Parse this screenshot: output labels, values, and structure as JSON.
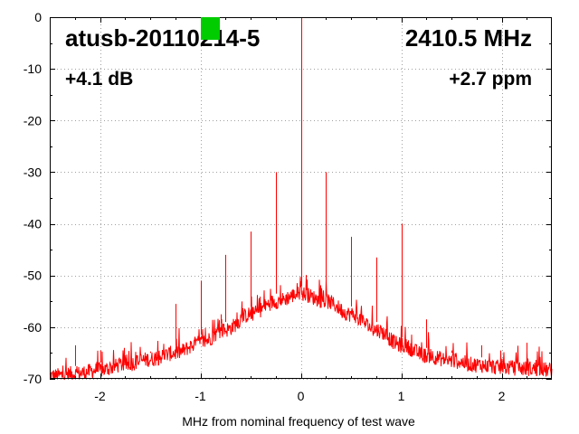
{
  "chart_data": {
    "type": "line",
    "title": "atusb-20110214-5",
    "frequency_label": "2410.5 MHz",
    "gain_label": "+4.1 dB",
    "ppm_label": "+2.7 ppm",
    "xlabel": "MHz from nominal frequency of test wave",
    "ylabel": "",
    "xlim": [
      -2.5,
      2.5
    ],
    "ylim": [
      -70,
      0
    ],
    "x_ticks": [
      -2,
      -1,
      0,
      1,
      2
    ],
    "y_ticks": [
      0,
      -10,
      -20,
      -30,
      -40,
      -50,
      -60,
      -70
    ],
    "grid": true,
    "legend": "none",
    "colors": {
      "trace": "#ff0000",
      "marker": "#00cc00",
      "grid": "#a0a0a0"
    },
    "series": [
      {
        "noise_floor_envelope": {
          "x": [
            -2.5,
            -2.25,
            -2.0,
            -1.75,
            -1.5,
            -1.25,
            -1.0,
            -0.75,
            -0.5,
            -0.25,
            0.0,
            0.25,
            0.5,
            0.75,
            1.0,
            1.25,
            1.5,
            1.75,
            2.0,
            2.25,
            2.5
          ],
          "y": [
            -69.5,
            -69.0,
            -68.3,
            -67.2,
            -66.2,
            -65.0,
            -63.0,
            -60.5,
            -57.5,
            -55.0,
            -53.5,
            -55.0,
            -57.5,
            -60.5,
            -63.5,
            -65.5,
            -66.5,
            -67.3,
            -67.8,
            -68.0,
            -68.3
          ]
        },
        "spurs": [
          {
            "x": 0.0,
            "y": 0
          },
          {
            "x": -0.25,
            "y": -30
          },
          {
            "x": 0.25,
            "y": -30
          },
          {
            "x": 1.0,
            "y": -40
          },
          {
            "x": -0.5,
            "y": -41.5
          },
          {
            "x": 0.5,
            "y": -42.5
          },
          {
            "x": -0.75,
            "y": -46
          },
          {
            "x": 0.75,
            "y": -46.5
          },
          {
            "x": -1.0,
            "y": -51
          },
          {
            "x": -1.25,
            "y": -55.5
          },
          {
            "x": 1.25,
            "y": -58.5
          },
          {
            "x": -0.8,
            "y": -57.5
          },
          {
            "x": -2.25,
            "y": -63.5
          },
          {
            "x": -2.0,
            "y": -64.5
          },
          {
            "x": 2.25,
            "y": -63
          },
          {
            "x": 1.8,
            "y": -63.5
          },
          {
            "x": 1.5,
            "y": -64.5
          },
          {
            "x": -1.75,
            "y": -65.5
          },
          {
            "x": -1.5,
            "y": -65
          }
        ]
      }
    ]
  }
}
